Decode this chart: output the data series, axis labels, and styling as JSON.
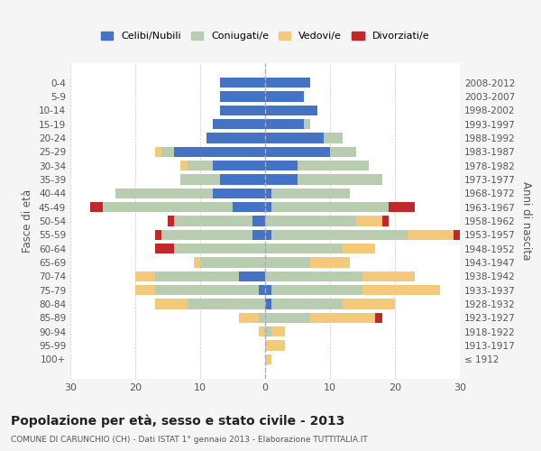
{
  "age_groups": [
    "100+",
    "95-99",
    "90-94",
    "85-89",
    "80-84",
    "75-79",
    "70-74",
    "65-69",
    "60-64",
    "55-59",
    "50-54",
    "45-49",
    "40-44",
    "35-39",
    "30-34",
    "25-29",
    "20-24",
    "15-19",
    "10-14",
    "5-9",
    "0-4"
  ],
  "birth_years": [
    "≤ 1912",
    "1913-1917",
    "1918-1922",
    "1923-1927",
    "1928-1932",
    "1933-1937",
    "1938-1942",
    "1943-1947",
    "1948-1952",
    "1953-1957",
    "1958-1962",
    "1963-1967",
    "1968-1972",
    "1973-1977",
    "1978-1982",
    "1983-1987",
    "1988-1992",
    "1993-1997",
    "1998-2002",
    "2003-2007",
    "2008-2012"
  ],
  "colors": {
    "celibi": "#4472C4",
    "coniugati": "#B8CCB0",
    "vedovi": "#F5C97A",
    "divorziati": "#C0282A"
  },
  "males": {
    "celibi": [
      0,
      0,
      0,
      0,
      0,
      1,
      4,
      0,
      0,
      2,
      2,
      5,
      8,
      7,
      8,
      14,
      9,
      8,
      7,
      7,
      7
    ],
    "coniugati": [
      0,
      0,
      0,
      1,
      12,
      16,
      13,
      10,
      14,
      14,
      12,
      20,
      15,
      6,
      4,
      2,
      0,
      0,
      0,
      0,
      0
    ],
    "vedovi": [
      0,
      0,
      1,
      3,
      5,
      3,
      3,
      1,
      0,
      0,
      0,
      0,
      0,
      0,
      1,
      1,
      0,
      0,
      0,
      0,
      0
    ],
    "divorziati": [
      0,
      0,
      0,
      0,
      0,
      0,
      0,
      0,
      3,
      1,
      1,
      2,
      0,
      0,
      0,
      0,
      0,
      0,
      0,
      0,
      0
    ]
  },
  "females": {
    "celibi": [
      0,
      0,
      0,
      0,
      1,
      1,
      0,
      0,
      0,
      1,
      0,
      1,
      1,
      5,
      5,
      10,
      9,
      6,
      8,
      6,
      7
    ],
    "coniugati": [
      0,
      0,
      1,
      7,
      11,
      14,
      15,
      7,
      12,
      21,
      14,
      18,
      12,
      13,
      11,
      4,
      3,
      1,
      0,
      0,
      0
    ],
    "vedovi": [
      1,
      3,
      2,
      10,
      8,
      12,
      8,
      6,
      5,
      7,
      4,
      0,
      0,
      0,
      0,
      0,
      0,
      0,
      0,
      0,
      0
    ],
    "divorziati": [
      0,
      0,
      0,
      1,
      0,
      0,
      0,
      0,
      0,
      2,
      1,
      4,
      0,
      0,
      0,
      0,
      0,
      0,
      0,
      0,
      0
    ]
  },
  "title": "Popolazione per età, sesso e stato civile - 2013",
  "subtitle": "COMUNE DI CARUNCHIO (CH) - Dati ISTAT 1° gennaio 2013 - Elaborazione TUTTITALIA.IT",
  "ylabel_left": "Fasce di età",
  "ylabel_right": "Anni di nascita",
  "xlim": 30,
  "background": "#f5f5f5",
  "plot_background": "#ffffff"
}
